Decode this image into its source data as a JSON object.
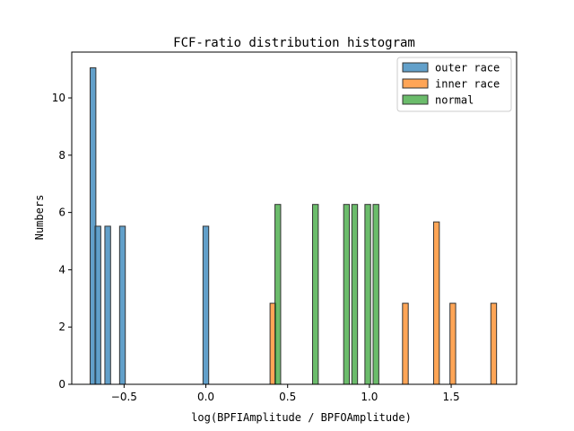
{
  "chart_data": {
    "type": "bar",
    "title": "FCF-ratio distribution histogram",
    "xlabel": "log(BPFIAmplitude / BPFOAmplitude)",
    "ylabel": "Numbers",
    "xlim": [
      -0.82,
      1.9
    ],
    "ylim": [
      0,
      11.6
    ],
    "xticks": [
      -0.5,
      0.0,
      0.5,
      1.0,
      1.5
    ],
    "xtick_labels": [
      "−0.5",
      "0.0",
      "0.5",
      "1.0",
      "1.5"
    ],
    "yticks": [
      0,
      2,
      4,
      6,
      8,
      10
    ],
    "ytick_labels": [
      "0",
      "2",
      "4",
      "6",
      "8",
      "10"
    ],
    "bar_width": 0.035,
    "grid": false,
    "legend_position": "top-right",
    "series": [
      {
        "name": "outer race",
        "color": "#1f77b4",
        "bars": [
          {
            "x": -0.69,
            "y": 11.05
          },
          {
            "x": -0.66,
            "y": 5.52
          },
          {
            "x": -0.6,
            "y": 5.52
          },
          {
            "x": -0.51,
            "y": 5.52
          },
          {
            "x": 0.0,
            "y": 5.52
          }
        ]
      },
      {
        "name": "inner race",
        "color": "#ff7f0e",
        "bars": [
          {
            "x": 0.41,
            "y": 2.83
          },
          {
            "x": 1.22,
            "y": 2.83
          },
          {
            "x": 1.41,
            "y": 5.67
          },
          {
            "x": 1.51,
            "y": 2.83
          },
          {
            "x": 1.76,
            "y": 2.83
          }
        ]
      },
      {
        "name": "normal",
        "color": "#2ca02c",
        "bars": [
          {
            "x": 0.44,
            "y": 6.28
          },
          {
            "x": 0.67,
            "y": 6.28
          },
          {
            "x": 0.86,
            "y": 6.28
          },
          {
            "x": 0.91,
            "y": 6.28
          },
          {
            "x": 0.99,
            "y": 6.28
          },
          {
            "x": 1.04,
            "y": 6.28
          }
        ]
      }
    ]
  }
}
